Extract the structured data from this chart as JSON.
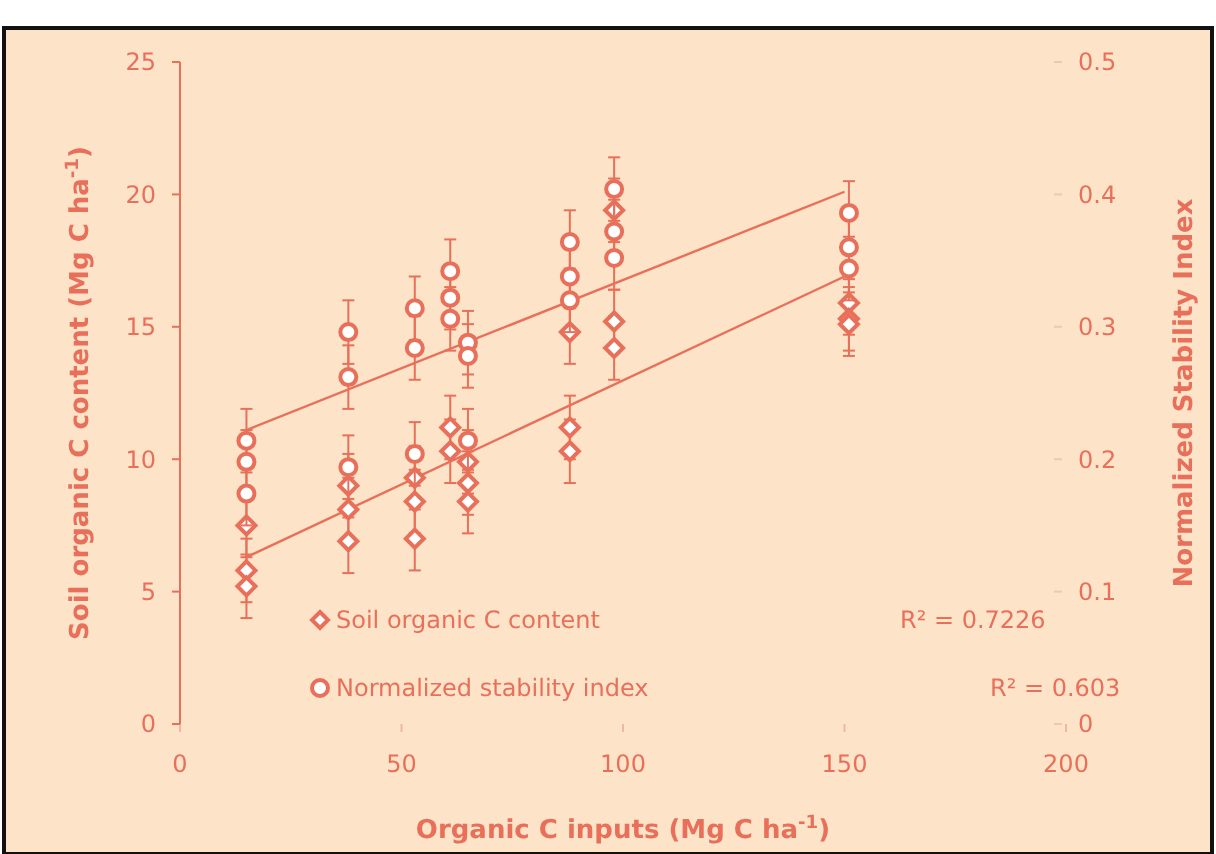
{
  "chart_data": {
    "type": "scatter",
    "xlabel": "Organic C inputs (Mg C ha$^{-1}$)",
    "ylabel": "Soil organic C content (Mg C ha$^{-1}$)",
    "y2label": "Normalized Stability Index",
    "xlim": [
      0,
      200
    ],
    "xticks": [
      0,
      50,
      100,
      150,
      200
    ],
    "ylim": [
      0,
      25
    ],
    "yticks": [
      0,
      5,
      10,
      15,
      20,
      25
    ],
    "y2lim": [
      0,
      0.5
    ],
    "y2ticks": [
      0,
      0.1,
      0.2,
      0.3,
      0.4,
      0.5
    ],
    "legend": "bottom left",
    "grid": false,
    "series": [
      {
        "name": "Soil organic C content",
        "color": "#e8705a",
        "marker": "diamond",
        "x": [
          15,
          15,
          15,
          38,
          38,
          38,
          53,
          53,
          53,
          61,
          61,
          65,
          65,
          65,
          88,
          88,
          88,
          98,
          98,
          98,
          151,
          151,
          151
        ],
        "values": [
          7.5,
          5.8,
          5.2,
          9.0,
          8.1,
          6.9,
          9.3,
          8.4,
          7.0,
          11.2,
          10.3,
          9.9,
          9.1,
          8.4,
          14.8,
          11.2,
          10.3,
          19.4,
          15.2,
          14.2,
          15.9,
          15.3,
          15.1
        ],
        "errors": [
          1.2,
          1.2,
          1.2,
          1.2,
          1.2,
          1.2,
          1.2,
          1.2,
          1.2,
          1.2,
          1.2,
          1.2,
          1.2,
          1.2,
          1.2,
          1.2,
          1.2,
          1.2,
          1.2,
          1.2,
          1.2,
          1.2,
          1.2
        ]
      },
      {
        "name": "Normalized stability index",
        "color": "#e8705a",
        "marker": "circle",
        "axis": "y2",
        "x": [
          15,
          15,
          15,
          38,
          38,
          38,
          53,
          53,
          53,
          61,
          61,
          61,
          65,
          65,
          65,
          88,
          88,
          88,
          98,
          98,
          98,
          151,
          151,
          151
        ],
        "values": [
          0.214,
          0.198,
          0.174,
          0.296,
          0.262,
          0.194,
          0.314,
          0.284,
          0.204,
          0.342,
          0.322,
          0.306,
          0.288,
          0.278,
          0.214,
          0.364,
          0.338,
          0.32,
          0.404,
          0.372,
          0.352,
          0.386,
          0.36,
          0.344
        ],
        "errors": [
          0.024,
          0.024,
          0.024,
          0.024,
          0.024,
          0.024,
          0.024,
          0.024,
          0.024,
          0.024,
          0.024,
          0.024,
          0.024,
          0.024,
          0.024,
          0.024,
          0.024,
          0.024,
          0.024,
          0.024,
          0.024,
          0.024,
          0.024,
          0.024
        ]
      },
      {
        "type": "line",
        "color": "#e8705a",
        "x": [
          15,
          150
        ],
        "values": [
          6.3,
          16.9
        ]
      },
      {
        "type": "line",
        "color": "#e8705a",
        "axis": "y2",
        "x": [
          15,
          150
        ],
        "values": [
          0.222,
          0.402
        ]
      }
    ],
    "annotations": [
      "R² = 0.7226",
      "R² = 0.603"
    ]
  }
}
